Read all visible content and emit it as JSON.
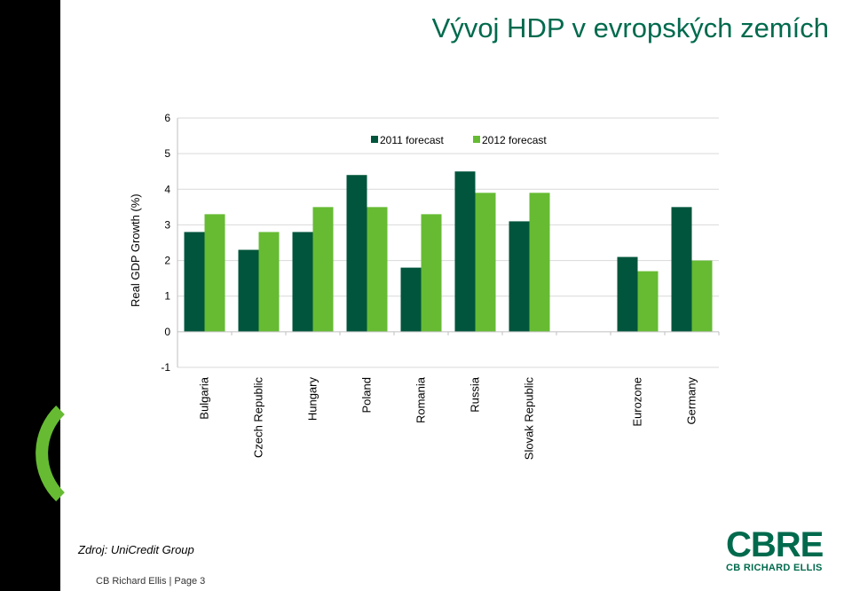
{
  "title": "Vývoj HDP v evropských zemích",
  "source": "Zdroj: UniCredit Group",
  "footer": "CB Richard Ellis | Page 3",
  "logo": {
    "word": "CBRE",
    "sub": "CB RICHARD ELLIS"
  },
  "colors": {
    "series1": "#00553C",
    "series2": "#66BB33",
    "title": "#006A4D",
    "accent": "#66BB33"
  },
  "chart_data": {
    "type": "bar",
    "categories": [
      "Bulgaria",
      "Czech Republic",
      "Hungary",
      "Poland",
      "Romania",
      "Russia",
      "Slovak Republic",
      "",
      "Eurozone",
      "Germany"
    ],
    "series": [
      {
        "name": "2011 forecast",
        "values": [
          2.8,
          2.3,
          2.8,
          4.4,
          1.8,
          4.5,
          3.1,
          null,
          2.1,
          3.5
        ]
      },
      {
        "name": "2012 forecast",
        "values": [
          3.3,
          2.8,
          3.5,
          3.5,
          3.3,
          3.9,
          3.9,
          null,
          1.7,
          2.0
        ]
      }
    ],
    "ylabel": "Real GDP Growth (%)",
    "ylim": [
      -1,
      6
    ],
    "yticks": [
      -1,
      0,
      1,
      2,
      3,
      4,
      5,
      6
    ],
    "grid": true,
    "legend": "top-center"
  }
}
